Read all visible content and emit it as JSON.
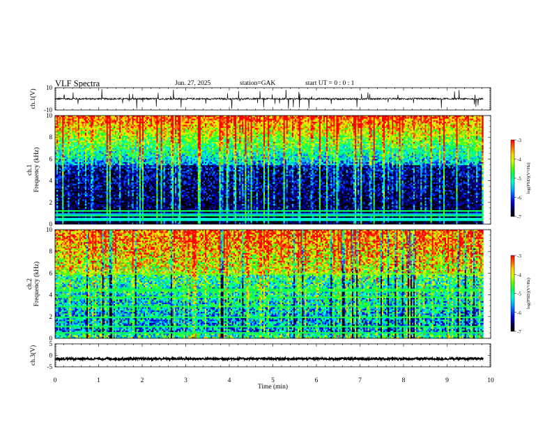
{
  "header": {
    "title": "VLF  Spectra",
    "date": "Jun. 27, 2025",
    "station": "station=GAK",
    "start": "start  UT =   0 : 0  : 1"
  },
  "colors": {
    "colormap": [
      "#000000",
      "#000050",
      "#0000c8",
      "#0050ff",
      "#00b4ff",
      "#00ffd2",
      "#00ff5a",
      "#5aff00",
      "#d2ff00",
      "#ffd200",
      "#ff6400",
      "#ff0000",
      "#ffffff"
    ]
  },
  "chart_data": [
    {
      "id": "ch1-waveform",
      "type": "line",
      "ylabel": "ch.1(V)",
      "ylim": [
        -10,
        10
      ],
      "yticks": [
        "10",
        "-10"
      ],
      "baseline": 0,
      "xlim": [
        0,
        10
      ]
    },
    {
      "id": "ch1-spectrogram",
      "type": "heatmap",
      "ylabel": "ch.1\nFrequency (kHz)",
      "ylim": [
        0,
        10
      ],
      "yticks": [
        "0",
        "2",
        "4",
        "6",
        "8",
        "10"
      ],
      "xlim": [
        0,
        10
      ],
      "colorbar": {
        "label": "log(PSD)(V²/Hz)",
        "range": [
          -7,
          -3
        ],
        "ticks": [
          "-3",
          "-4",
          "-5",
          "-6",
          "-7"
        ]
      }
    },
    {
      "id": "ch2-spectrogram",
      "type": "heatmap",
      "ylabel": "ch.2\nFrequency (kHz)",
      "ylim": [
        0,
        10
      ],
      "yticks": [
        "0",
        "2",
        "4",
        "6",
        "8",
        "10"
      ],
      "xlim": [
        0,
        10
      ],
      "colorbar": {
        "label": "log(PSD)(V²/Hz)",
        "range": [
          -7,
          -3
        ],
        "ticks": [
          "-3",
          "-4",
          "-5",
          "-6",
          "-7"
        ]
      }
    },
    {
      "id": "ch3-waveform",
      "type": "line",
      "ylabel": "ch.3(V)",
      "ylim": [
        -5,
        5
      ],
      "yticks": [
        "5",
        "0",
        "-5"
      ],
      "baseline": -1.5,
      "xlim": [
        0,
        10
      ]
    }
  ],
  "xaxis": {
    "label": "Time  (min)",
    "ticks": [
      "0",
      "1",
      "2",
      "3",
      "4",
      "5",
      "6",
      "7",
      "8",
      "9",
      "10"
    ],
    "data_end": 9.83
  }
}
